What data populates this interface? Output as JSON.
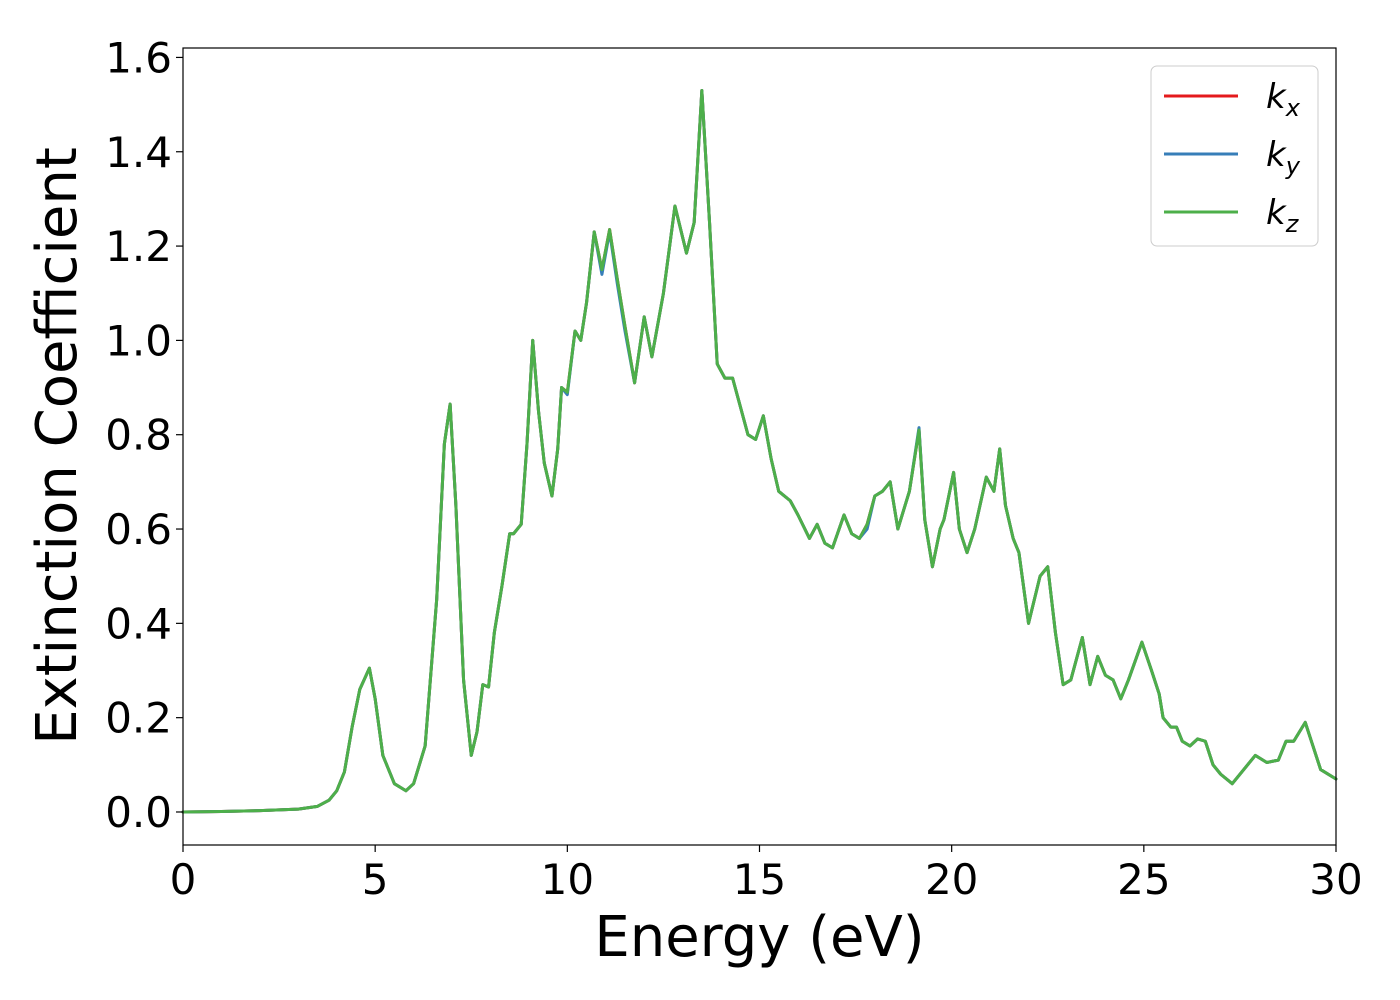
{
  "chart_data": {
    "type": "line",
    "title": "",
    "xlabel": "Energy (eV)",
    "ylabel": "Extinction Coefficient",
    "xlim": [
      0,
      30
    ],
    "ylim": [
      -0.07,
      1.62
    ],
    "xticks": [
      0,
      5,
      10,
      15,
      20,
      25,
      30
    ],
    "xtick_labels": [
      "0",
      "5",
      "10",
      "15",
      "20",
      "25",
      "30"
    ],
    "yticks": [
      0.0,
      0.2,
      0.4,
      0.6,
      0.8,
      1.0,
      1.2,
      1.4,
      1.6
    ],
    "ytick_labels": [
      "0.0",
      "0.2",
      "0.4",
      "0.6",
      "0.8",
      "1.0",
      "1.2",
      "1.4",
      "1.6"
    ],
    "grid": false,
    "legend_position": "top-right",
    "x": [
      0,
      1,
      2,
      3,
      3.5,
      3.8,
      4.0,
      4.2,
      4.4,
      4.6,
      4.85,
      5.0,
      5.2,
      5.5,
      5.8,
      6.0,
      6.3,
      6.6,
      6.8,
      6.95,
      7.1,
      7.3,
      7.5,
      7.65,
      7.8,
      7.95,
      8.1,
      8.3,
      8.5,
      8.6,
      8.8,
      8.95,
      9.1,
      9.25,
      9.4,
      9.6,
      9.75,
      9.85,
      10.0,
      10.2,
      10.35,
      10.5,
      10.7,
      10.9,
      11.1,
      11.3,
      11.5,
      11.75,
      12.0,
      12.2,
      12.5,
      12.8,
      13.1,
      13.3,
      13.5,
      13.7,
      13.9,
      14.1,
      14.3,
      14.5,
      14.7,
      14.9,
      15.1,
      15.3,
      15.5,
      15.8,
      16.0,
      16.3,
      16.5,
      16.7,
      16.9,
      17.2,
      17.4,
      17.6,
      17.8,
      18.0,
      18.2,
      18.4,
      18.6,
      18.9,
      19.15,
      19.3,
      19.5,
      19.7,
      19.8,
      20.05,
      20.2,
      20.4,
      20.6,
      20.9,
      21.1,
      21.25,
      21.4,
      21.6,
      21.75,
      22.0,
      22.3,
      22.5,
      22.7,
      22.9,
      23.1,
      23.4,
      23.6,
      23.8,
      24.0,
      24.2,
      24.4,
      24.6,
      24.95,
      25.2,
      25.4,
      25.5,
      25.7,
      25.85,
      26.0,
      26.2,
      26.4,
      26.6,
      26.8,
      27.0,
      27.3,
      27.6,
      27.9,
      28.2,
      28.5,
      28.7,
      28.9,
      29.2,
      29.4,
      29.6,
      30.0
    ],
    "series": [
      {
        "name": "k_x",
        "color": "#e41a1c",
        "values": [
          0.0,
          0.001,
          0.003,
          0.006,
          0.012,
          0.025,
          0.045,
          0.085,
          0.18,
          0.26,
          0.305,
          0.24,
          0.12,
          0.06,
          0.045,
          0.06,
          0.14,
          0.45,
          0.78,
          0.865,
          0.65,
          0.28,
          0.12,
          0.17,
          0.27,
          0.265,
          0.38,
          0.48,
          0.59,
          0.59,
          0.61,
          0.78,
          1.0,
          0.85,
          0.74,
          0.67,
          0.77,
          0.9,
          0.89,
          1.02,
          1.0,
          1.08,
          1.23,
          1.15,
          1.235,
          1.13,
          1.03,
          0.91,
          1.05,
          0.965,
          1.1,
          1.285,
          1.185,
          1.25,
          1.53,
          1.25,
          0.95,
          0.92,
          0.92,
          0.86,
          0.8,
          0.79,
          0.84,
          0.75,
          0.68,
          0.66,
          0.63,
          0.58,
          0.61,
          0.57,
          0.56,
          0.63,
          0.59,
          0.58,
          0.61,
          0.67,
          0.68,
          0.7,
          0.6,
          0.68,
          0.81,
          0.62,
          0.52,
          0.6,
          0.62,
          0.72,
          0.6,
          0.55,
          0.6,
          0.71,
          0.68,
          0.77,
          0.65,
          0.58,
          0.55,
          0.4,
          0.5,
          0.52,
          0.38,
          0.27,
          0.28,
          0.37,
          0.27,
          0.33,
          0.29,
          0.28,
          0.24,
          0.28,
          0.36,
          0.3,
          0.25,
          0.2,
          0.18,
          0.18,
          0.15,
          0.14,
          0.155,
          0.15,
          0.1,
          0.08,
          0.06,
          0.09,
          0.12,
          0.105,
          0.11,
          0.15,
          0.15,
          0.19,
          0.14,
          0.09,
          0.07
        ]
      },
      {
        "name": "k_y",
        "color": "#377eb8",
        "values": [
          0.0,
          0.001,
          0.003,
          0.006,
          0.012,
          0.025,
          0.045,
          0.085,
          0.18,
          0.26,
          0.305,
          0.24,
          0.12,
          0.06,
          0.045,
          0.06,
          0.14,
          0.45,
          0.78,
          0.865,
          0.65,
          0.28,
          0.12,
          0.17,
          0.27,
          0.265,
          0.38,
          0.48,
          0.59,
          0.59,
          0.61,
          0.78,
          1.0,
          0.85,
          0.74,
          0.67,
          0.77,
          0.9,
          0.885,
          1.02,
          1.0,
          1.08,
          1.23,
          1.14,
          1.23,
          1.12,
          1.02,
          0.91,
          1.05,
          0.965,
          1.1,
          1.285,
          1.185,
          1.25,
          1.53,
          1.25,
          0.95,
          0.92,
          0.92,
          0.86,
          0.8,
          0.79,
          0.84,
          0.75,
          0.68,
          0.66,
          0.63,
          0.58,
          0.61,
          0.57,
          0.56,
          0.63,
          0.59,
          0.58,
          0.6,
          0.67,
          0.68,
          0.7,
          0.6,
          0.68,
          0.815,
          0.62,
          0.52,
          0.6,
          0.62,
          0.72,
          0.6,
          0.55,
          0.6,
          0.71,
          0.68,
          0.77,
          0.65,
          0.58,
          0.55,
          0.4,
          0.5,
          0.52,
          0.38,
          0.27,
          0.28,
          0.37,
          0.27,
          0.33,
          0.29,
          0.28,
          0.24,
          0.28,
          0.36,
          0.3,
          0.25,
          0.2,
          0.18,
          0.18,
          0.15,
          0.14,
          0.155,
          0.15,
          0.1,
          0.08,
          0.06,
          0.09,
          0.12,
          0.105,
          0.11,
          0.15,
          0.15,
          0.19,
          0.14,
          0.09,
          0.07
        ]
      },
      {
        "name": "k_z",
        "color": "#4daf4a",
        "values": [
          0.0,
          0.001,
          0.003,
          0.006,
          0.012,
          0.025,
          0.045,
          0.085,
          0.18,
          0.26,
          0.305,
          0.24,
          0.12,
          0.06,
          0.045,
          0.06,
          0.14,
          0.45,
          0.78,
          0.865,
          0.65,
          0.28,
          0.12,
          0.17,
          0.27,
          0.265,
          0.38,
          0.48,
          0.59,
          0.59,
          0.61,
          0.78,
          1.0,
          0.85,
          0.74,
          0.67,
          0.77,
          0.9,
          0.89,
          1.02,
          1.0,
          1.08,
          1.23,
          1.15,
          1.235,
          1.13,
          1.03,
          0.91,
          1.05,
          0.965,
          1.1,
          1.285,
          1.185,
          1.25,
          1.53,
          1.25,
          0.95,
          0.92,
          0.92,
          0.86,
          0.8,
          0.79,
          0.84,
          0.75,
          0.68,
          0.66,
          0.63,
          0.58,
          0.61,
          0.57,
          0.56,
          0.63,
          0.59,
          0.58,
          0.61,
          0.67,
          0.68,
          0.7,
          0.6,
          0.68,
          0.81,
          0.62,
          0.52,
          0.6,
          0.62,
          0.72,
          0.6,
          0.55,
          0.6,
          0.71,
          0.68,
          0.77,
          0.65,
          0.58,
          0.55,
          0.4,
          0.5,
          0.52,
          0.38,
          0.27,
          0.28,
          0.37,
          0.27,
          0.33,
          0.29,
          0.28,
          0.24,
          0.28,
          0.36,
          0.3,
          0.25,
          0.2,
          0.18,
          0.18,
          0.15,
          0.14,
          0.155,
          0.15,
          0.1,
          0.08,
          0.06,
          0.09,
          0.12,
          0.105,
          0.11,
          0.15,
          0.15,
          0.19,
          0.14,
          0.09,
          0.07
        ]
      }
    ],
    "legend": [
      {
        "symbol": "k",
        "sub": "x",
        "color": "#e41a1c"
      },
      {
        "symbol": "k",
        "sub": "y",
        "color": "#377eb8"
      },
      {
        "symbol": "k",
        "sub": "z",
        "color": "#4daf4a"
      }
    ]
  }
}
